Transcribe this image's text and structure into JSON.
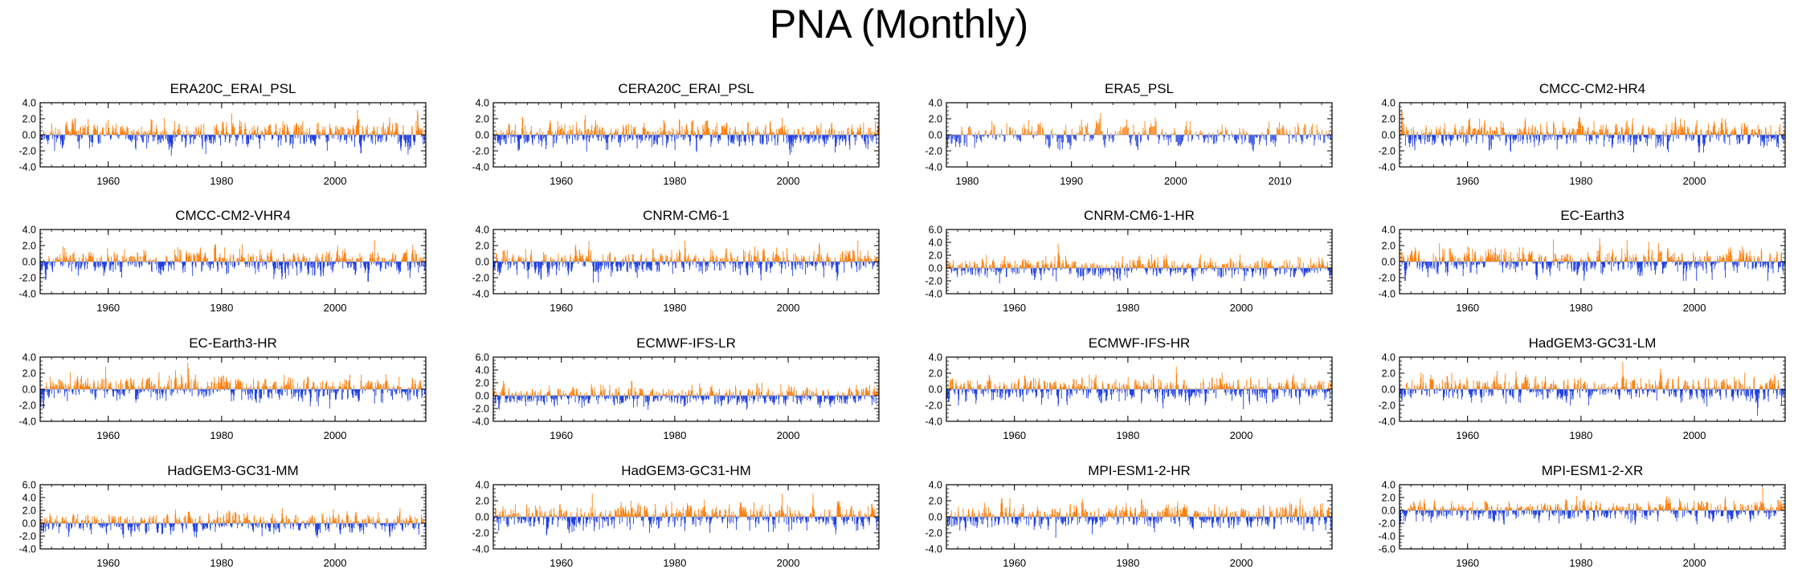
{
  "title": "PNA (Monthly)",
  "colors": {
    "positive": "#ff7f0e",
    "negative": "#1f3fe0",
    "axis": "#000000",
    "zero": "#9a9a9a"
  },
  "chart_data": [
    {
      "name": "ERA20C_ERAI_PSL",
      "type": "bar",
      "x_range": [
        1948,
        2016
      ],
      "x_ticks": [
        1960,
        1980,
        2000
      ],
      "ylim": [
        -4,
        4
      ],
      "y_ticks": [
        "4.0",
        "2.0",
        "0.0",
        "-2.0",
        "-4.0"
      ],
      "pos_max": 3.1,
      "neg_min": -2.6,
      "seed": 11
    },
    {
      "name": "CERA20C_ERAI_PSL",
      "type": "bar",
      "x_range": [
        1948,
        2016
      ],
      "x_ticks": [
        1960,
        1980,
        2000
      ],
      "ylim": [
        -4,
        4
      ],
      "y_ticks": [
        "4.0",
        "2.0",
        "0.0",
        "-2.0",
        "-4.0"
      ],
      "pos_max": 3.4,
      "neg_min": -2.5,
      "seed": 23
    },
    {
      "name": "ERA5_PSL",
      "type": "bar",
      "x_range": [
        1978,
        2015
      ],
      "x_ticks": [
        1980,
        1990,
        2000,
        2010
      ],
      "ylim": [
        -4,
        4
      ],
      "y_ticks": [
        "4.0",
        "2.0",
        "0.0",
        "-2.0",
        "-4.0"
      ],
      "pos_max": 3.0,
      "neg_min": -2.4,
      "seed": 37
    },
    {
      "name": "CMCC-CM2-HR4",
      "type": "bar",
      "x_range": [
        1948,
        2016
      ],
      "x_ticks": [
        1960,
        1980,
        2000
      ],
      "ylim": [
        -4,
        4
      ],
      "y_ticks": [
        "4.0",
        "2.0",
        "0.0",
        "-2.0",
        "-4.0"
      ],
      "pos_max": 3.2,
      "neg_min": -2.2,
      "seed": 41
    },
    {
      "name": "CMCC-CM2-VHR4",
      "type": "bar",
      "x_range": [
        1948,
        2016
      ],
      "x_ticks": [
        1960,
        1980,
        2000
      ],
      "ylim": [
        -4,
        4
      ],
      "y_ticks": [
        "4.0",
        "2.0",
        "0.0",
        "-2.0",
        "-4.0"
      ],
      "pos_max": 2.8,
      "neg_min": -2.5,
      "seed": 53
    },
    {
      "name": "CNRM-CM6-1",
      "type": "bar",
      "x_range": [
        1948,
        2016
      ],
      "x_ticks": [
        1960,
        1980,
        2000
      ],
      "ylim": [
        -4,
        4
      ],
      "y_ticks": [
        "4.0",
        "2.0",
        "0.0",
        "-2.0",
        "-4.0"
      ],
      "pos_max": 2.6,
      "neg_min": -3.0,
      "seed": 67
    },
    {
      "name": "CNRM-CM6-1-HR",
      "type": "bar",
      "x_range": [
        1948,
        2016
      ],
      "x_ticks": [
        1960,
        1980,
        2000
      ],
      "ylim": [
        -4,
        6
      ],
      "y_ticks": [
        "6.0",
        "4.0",
        "2.0",
        "0.0",
        "-2.0",
        "-4.0"
      ],
      "pos_max": 3.8,
      "neg_min": -2.4,
      "seed": 71
    },
    {
      "name": "EC-Earth3",
      "type": "bar",
      "x_range": [
        1948,
        2016
      ],
      "x_ticks": [
        1960,
        1980,
        2000
      ],
      "ylim": [
        -4,
        4
      ],
      "y_ticks": [
        "4.0",
        "2.0",
        "0.0",
        "-2.0",
        "-4.0"
      ],
      "pos_max": 2.9,
      "neg_min": -2.4,
      "seed": 83
    },
    {
      "name": "EC-Earth3-HR",
      "type": "bar",
      "x_range": [
        1948,
        2016
      ],
      "x_ticks": [
        1960,
        1980,
        2000
      ],
      "ylim": [
        -4,
        4
      ],
      "y_ticks": [
        "4.0",
        "2.0",
        "0.0",
        "-2.0",
        "-4.0"
      ],
      "pos_max": 3.3,
      "neg_min": -2.4,
      "seed": 97
    },
    {
      "name": "ECMWF-IFS-LR",
      "type": "bar",
      "x_range": [
        1948,
        2016
      ],
      "x_ticks": [
        1960,
        1980,
        2000
      ],
      "ylim": [
        -4,
        6
      ],
      "y_ticks": [
        "6.0",
        "4.0",
        "2.0",
        "0.0",
        "-2.0",
        "-4.0"
      ],
      "pos_max": 2.9,
      "neg_min": -2.2,
      "seed": 101
    },
    {
      "name": "ECMWF-IFS-HR",
      "type": "bar",
      "x_range": [
        1948,
        2016
      ],
      "x_ticks": [
        1960,
        1980,
        2000
      ],
      "ylim": [
        -4,
        4
      ],
      "y_ticks": [
        "4.0",
        "2.0",
        "0.0",
        "-2.0",
        "-4.0"
      ],
      "pos_max": 2.8,
      "neg_min": -2.5,
      "seed": 113
    },
    {
      "name": "HadGEM3-GC31-LM",
      "type": "bar",
      "x_range": [
        1948,
        2016
      ],
      "x_ticks": [
        1960,
        1980,
        2000
      ],
      "ylim": [
        -4,
        4
      ],
      "y_ticks": [
        "4.0",
        "2.0",
        "0.0",
        "-2.0",
        "-4.0"
      ],
      "pos_max": 3.4,
      "neg_min": -3.3,
      "seed": 127
    },
    {
      "name": "HadGEM3-GC31-MM",
      "type": "bar",
      "x_range": [
        1948,
        2016
      ],
      "x_ticks": [
        1960,
        1980,
        2000
      ],
      "ylim": [
        -4,
        6
      ],
      "y_ticks": [
        "6.0",
        "4.0",
        "2.0",
        "0.0",
        "-2.0",
        "-4.0"
      ],
      "pos_max": 3.8,
      "neg_min": -2.9,
      "seed": 131
    },
    {
      "name": "HadGEM3-GC31-HM",
      "type": "bar",
      "x_range": [
        1948,
        2016
      ],
      "x_ticks": [
        1960,
        1980,
        2000
      ],
      "ylim": [
        -4,
        4
      ],
      "y_ticks": [
        "4.0",
        "2.0",
        "0.0",
        "-2.0",
        "-4.0"
      ],
      "pos_max": 2.9,
      "neg_min": -2.8,
      "seed": 139
    },
    {
      "name": "MPI-ESM1-2-HR",
      "type": "bar",
      "x_range": [
        1948,
        2016
      ],
      "x_ticks": [
        1960,
        1980,
        2000
      ],
      "ylim": [
        -4,
        4
      ],
      "y_ticks": [
        "4.0",
        "2.0",
        "0.0",
        "-2.0",
        "-4.0"
      ],
      "pos_max": 3.0,
      "neg_min": -2.6,
      "seed": 149
    },
    {
      "name": "MPI-ESM1-2-XR",
      "type": "bar",
      "x_range": [
        1948,
        2016
      ],
      "x_ticks": [
        1960,
        1980,
        2000
      ],
      "ylim": [
        -6,
        4
      ],
      "y_ticks": [
        "4.0",
        "2.0",
        "0.0",
        "-2.0",
        "-4.0",
        "-6.0"
      ],
      "pos_max": 3.5,
      "neg_min": -3.4,
      "seed": 157
    }
  ]
}
